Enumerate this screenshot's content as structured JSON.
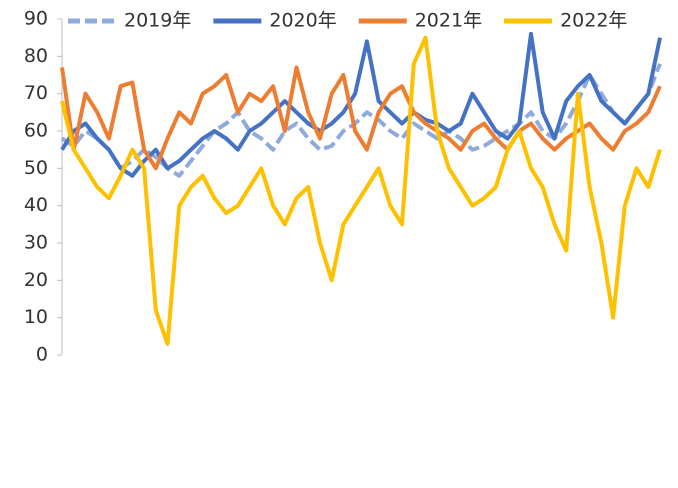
{
  "chart_data": {
    "type": "line",
    "categories": [
      null,
      null,
      null,
      null,
      null,
      null,
      null,
      null,
      null,
      null,
      null,
      null,
      null,
      null,
      null,
      null,
      null,
      null,
      null,
      null,
      null,
      null,
      null,
      null,
      null,
      null,
      null,
      null,
      null,
      null,
      null,
      null,
      null,
      null,
      null,
      null,
      null,
      null,
      null,
      null,
      null,
      null,
      null,
      null,
      null,
      null,
      null,
      null,
      null,
      null,
      null,
      null
    ],
    "ylim": [
      0,
      90
    ],
    "yticks": [
      0,
      10,
      20,
      30,
      40,
      50,
      60,
      70,
      80,
      90
    ],
    "legend": "top",
    "series": [
      {
        "name": "2019年",
        "color": "#8faadc",
        "dashed": true,
        "values": [
          58,
          56,
          60,
          58,
          55,
          50,
          52,
          55,
          53,
          50,
          48,
          52,
          56,
          60,
          62,
          65,
          60,
          58,
          55,
          60,
          62,
          58,
          55,
          56,
          60,
          62,
          65,
          63,
          60,
          58,
          62,
          60,
          58,
          60,
          58,
          55,
          56,
          58,
          60,
          62,
          65,
          60,
          58,
          62,
          68,
          75,
          70,
          65,
          62,
          66,
          70,
          78
        ]
      },
      {
        "name": "2020年",
        "color": "#4472c4",
        "values": [
          55,
          60,
          62,
          58,
          55,
          50,
          48,
          52,
          55,
          50,
          52,
          55,
          58,
          60,
          58,
          55,
          60,
          62,
          65,
          68,
          65,
          62,
          60,
          62,
          65,
          70,
          84,
          68,
          65,
          62,
          65,
          63,
          62,
          60,
          62,
          70,
          65,
          60,
          58,
          62,
          86,
          65,
          58,
          68,
          72,
          75,
          68,
          65,
          62,
          66,
          70,
          85
        ]
      },
      {
        "name": "2021年",
        "color": "#ed7d31",
        "values": [
          77,
          55,
          70,
          65,
          58,
          72,
          73,
          55,
          50,
          58,
          65,
          62,
          70,
          72,
          75,
          65,
          70,
          68,
          72,
          60,
          77,
          65,
          58,
          70,
          75,
          60,
          55,
          65,
          70,
          72,
          65,
          62,
          60,
          58,
          55,
          60,
          62,
          58,
          55,
          60,
          62,
          58,
          55,
          58,
          60,
          62,
          58,
          55,
          60,
          62,
          65,
          72
        ]
      },
      {
        "name": "2022年",
        "color": "#ffc000",
        "values": [
          68,
          55,
          50,
          45,
          42,
          48,
          55,
          50,
          12,
          3,
          40,
          45,
          48,
          42,
          38,
          40,
          45,
          50,
          40,
          35,
          42,
          45,
          30,
          20,
          35,
          40,
          45,
          50,
          40,
          35,
          78,
          85,
          60,
          50,
          45,
          40,
          42,
          45,
          55,
          60,
          50,
          45,
          35,
          28,
          70,
          45,
          30,
          10,
          40,
          50,
          45,
          55
        ]
      }
    ]
  }
}
